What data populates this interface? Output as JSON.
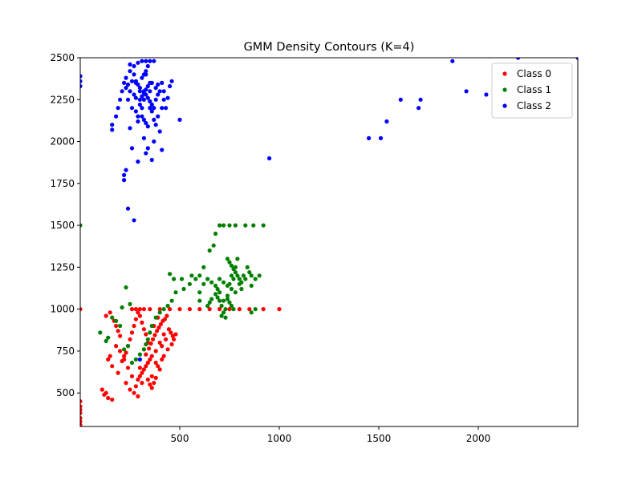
{
  "chart_data": {
    "type": "scatter",
    "title": "GMM Density Contours (K=4)",
    "xlabel": "",
    "ylabel": "",
    "xlim": [
      0,
      2500
    ],
    "ylim": [
      300,
      2500
    ],
    "xticks": [
      500,
      1000,
      1500,
      2000
    ],
    "yticks": [
      500,
      750,
      1000,
      1250,
      1500,
      1750,
      2000,
      2250,
      2500
    ],
    "grid": false,
    "legend_position": "top-right",
    "series": [
      {
        "name": "Class 0",
        "color": "#ff0000",
        "points": [
          [
            350,
            700
          ],
          [
            360,
            720
          ],
          [
            380,
            750
          ],
          [
            340,
            680
          ],
          [
            400,
            800
          ],
          [
            420,
            850
          ],
          [
            300,
            650
          ],
          [
            320,
            760
          ],
          [
            370,
            900
          ],
          [
            390,
            950
          ],
          [
            410,
            780
          ],
          [
            430,
            820
          ],
          [
            360,
            600
          ],
          [
            340,
            580
          ],
          [
            310,
            560
          ],
          [
            280,
            540
          ],
          [
            260,
            600
          ],
          [
            240,
            650
          ],
          [
            220,
            700
          ],
          [
            200,
            750
          ],
          [
            180,
            780
          ],
          [
            150,
            720
          ],
          [
            140,
            700
          ],
          [
            160,
            660
          ],
          [
            190,
            620
          ],
          [
            230,
            560
          ],
          [
            250,
            520
          ],
          [
            270,
            500
          ],
          [
            290,
            480
          ],
          [
            130,
            500
          ],
          [
            120,
            490
          ],
          [
            110,
            520
          ],
          [
            140,
            470
          ],
          [
            160,
            460
          ],
          [
            350,
            1000
          ],
          [
            400,
            1000
          ],
          [
            450,
            1000
          ],
          [
            500,
            1000
          ],
          [
            550,
            1000
          ],
          [
            600,
            1000
          ],
          [
            650,
            1000
          ],
          [
            700,
            1000
          ],
          [
            750,
            1000
          ],
          [
            800,
            1000
          ],
          [
            850,
            1000
          ],
          [
            920,
            1000
          ],
          [
            1000,
            1000
          ],
          [
            0,
            1000
          ],
          [
            0,
            450
          ],
          [
            0,
            420
          ],
          [
            0,
            400
          ],
          [
            0,
            380
          ],
          [
            0,
            350
          ],
          [
            0,
            330
          ],
          [
            0,
            310
          ],
          [
            330,
            730
          ],
          [
            345,
            765
          ],
          [
            355,
            795
          ],
          [
            365,
            820
          ],
          [
            375,
            845
          ],
          [
            385,
            870
          ],
          [
            395,
            890
          ],
          [
            405,
            910
          ],
          [
            415,
            930
          ],
          [
            425,
            940
          ],
          [
            435,
            960
          ],
          [
            445,
            880
          ],
          [
            455,
            860
          ],
          [
            465,
            840
          ],
          [
            330,
            660
          ],
          [
            320,
            640
          ],
          [
            310,
            620
          ],
          [
            300,
            600
          ],
          [
            290,
            580
          ],
          [
            380,
            680
          ],
          [
            390,
            660
          ],
          [
            400,
            640
          ],
          [
            410,
            700
          ],
          [
            420,
            720
          ],
          [
            440,
            760
          ],
          [
            460,
            790
          ],
          [
            470,
            820
          ],
          [
            480,
            850
          ],
          [
            340,
            800
          ],
          [
            330,
            850
          ],
          [
            320,
            880
          ],
          [
            310,
            920
          ],
          [
            300,
            960
          ],
          [
            290,
            980
          ],
          [
            280,
            940
          ],
          [
            270,
            900
          ],
          [
            260,
            860
          ],
          [
            250,
            820
          ],
          [
            240,
            780
          ],
          [
            230,
            740
          ],
          [
            220,
            720
          ],
          [
            210,
            690
          ],
          [
            350,
            550
          ],
          [
            360,
            530
          ],
          [
            370,
            560
          ],
          [
            380,
            590
          ],
          [
            200,
            840
          ],
          [
            190,
            870
          ],
          [
            180,
            900
          ],
          [
            170,
            930
          ],
          [
            150,
            980
          ],
          [
            130,
            960
          ],
          [
            260,
            1000
          ],
          [
            280,
            1000
          ],
          [
            300,
            1000
          ],
          [
            320,
            1000
          ]
        ]
      },
      {
        "name": "Class 1",
        "color": "#008000",
        "points": [
          [
            700,
            1100
          ],
          [
            720,
            1050
          ],
          [
            750,
            1150
          ],
          [
            730,
            1000
          ],
          [
            760,
            1200
          ],
          [
            740,
            1080
          ],
          [
            710,
            1020
          ],
          [
            690,
            1120
          ],
          [
            770,
            1180
          ],
          [
            780,
            1250
          ],
          [
            790,
            1300
          ],
          [
            800,
            1150
          ],
          [
            810,
            1120
          ],
          [
            820,
            1200
          ],
          [
            830,
            1180
          ],
          [
            840,
            1250
          ],
          [
            850,
            1220
          ],
          [
            860,
            1200
          ],
          [
            700,
            1500
          ],
          [
            720,
            1500
          ],
          [
            750,
            1500
          ],
          [
            780,
            1500
          ],
          [
            830,
            1500
          ],
          [
            870,
            1500
          ],
          [
            920,
            1500
          ],
          [
            0,
            1500
          ],
          [
            680,
            1450
          ],
          [
            670,
            1380
          ],
          [
            650,
            1350
          ],
          [
            620,
            1250
          ],
          [
            600,
            1200
          ],
          [
            580,
            1180
          ],
          [
            550,
            1150
          ],
          [
            520,
            1120
          ],
          [
            480,
            1100
          ],
          [
            460,
            1050
          ],
          [
            440,
            1020
          ],
          [
            420,
            1000
          ],
          [
            400,
            980
          ],
          [
            380,
            950
          ],
          [
            360,
            900
          ],
          [
            350,
            860
          ],
          [
            340,
            820
          ],
          [
            330,
            790
          ],
          [
            320,
            760
          ],
          [
            300,
            730
          ],
          [
            280,
            700
          ],
          [
            260,
            680
          ],
          [
            240,
            780
          ],
          [
            220,
            760
          ],
          [
            200,
            900
          ],
          [
            180,
            930
          ],
          [
            160,
            950
          ],
          [
            140,
            830
          ],
          [
            130,
            810
          ],
          [
            100,
            860
          ],
          [
            210,
            1010
          ],
          [
            230,
            1130
          ],
          [
            250,
            1030
          ],
          [
            600,
            1100
          ],
          [
            620,
            1150
          ],
          [
            640,
            1180
          ],
          [
            660,
            1160
          ],
          [
            680,
            1140
          ],
          [
            700,
            1180
          ],
          [
            720,
            1160
          ],
          [
            740,
            1140
          ],
          [
            760,
            1120
          ],
          [
            780,
            1100
          ],
          [
            740,
            1060
          ],
          [
            750,
            1040
          ],
          [
            760,
            1020
          ],
          [
            770,
            1000
          ],
          [
            720,
            980
          ],
          [
            710,
            960
          ],
          [
            730,
            950
          ],
          [
            740,
            1300
          ],
          [
            750,
            1280
          ],
          [
            760,
            1260
          ],
          [
            770,
            1240
          ],
          [
            780,
            1220
          ],
          [
            790,
            1200
          ],
          [
            800,
            1180
          ],
          [
            810,
            1160
          ],
          [
            700,
            1050
          ],
          [
            690,
            1070
          ],
          [
            680,
            1090
          ],
          [
            660,
            1060
          ],
          [
            650,
            1040
          ],
          [
            640,
            1020
          ],
          [
            880,
            1180
          ],
          [
            860,
            1140
          ],
          [
            900,
            1200
          ],
          [
            880,
            1000
          ],
          [
            860,
            980
          ],
          [
            450,
            1210
          ],
          [
            470,
            1180
          ],
          [
            510,
            1180
          ],
          [
            560,
            1200
          ],
          [
            600,
            1050
          ]
        ]
      },
      {
        "name": "Class 2",
        "color": "#0000ff",
        "points": [
          [
            300,
            2300
          ],
          [
            320,
            2250
          ],
          [
            280,
            2350
          ],
          [
            310,
            2200
          ],
          [
            330,
            2400
          ],
          [
            350,
            2300
          ],
          [
            290,
            2150
          ],
          [
            270,
            2400
          ],
          [
            340,
            2450
          ],
          [
            360,
            2350
          ],
          [
            250,
            2300
          ],
          [
            240,
            2250
          ],
          [
            260,
            2200
          ],
          [
            380,
            2250
          ],
          [
            370,
            2200
          ],
          [
            390,
            2150
          ],
          [
            400,
            2300
          ],
          [
            410,
            2350
          ],
          [
            420,
            2250
          ],
          [
            430,
            2200
          ],
          [
            310,
            2480
          ],
          [
            330,
            2480
          ],
          [
            350,
            2480
          ],
          [
            370,
            2480
          ],
          [
            290,
            2470
          ],
          [
            270,
            2450
          ],
          [
            250,
            2420
          ],
          [
            230,
            2380
          ],
          [
            220,
            2350
          ],
          [
            210,
            2300
          ],
          [
            200,
            2250
          ],
          [
            190,
            2200
          ],
          [
            180,
            2150
          ],
          [
            160,
            2100
          ],
          [
            160,
            2070
          ],
          [
            250,
            2080
          ],
          [
            260,
            1960
          ],
          [
            290,
            1880
          ],
          [
            330,
            1930
          ],
          [
            360,
            1890
          ],
          [
            410,
            1950
          ],
          [
            370,
            2000
          ],
          [
            400,
            2060
          ],
          [
            320,
            2020
          ],
          [
            340,
            1960
          ],
          [
            230,
            1830
          ],
          [
            220,
            1800
          ],
          [
            220,
            1770
          ],
          [
            240,
            1600
          ],
          [
            270,
            1530
          ],
          [
            440,
            2260
          ],
          [
            450,
            2330
          ],
          [
            420,
            2300
          ],
          [
            410,
            2200
          ],
          [
            500,
            2130
          ],
          [
            0,
            2390
          ],
          [
            0,
            2360
          ],
          [
            0,
            2330
          ],
          [
            950,
            1900
          ],
          [
            1450,
            2020
          ],
          [
            1510,
            2020
          ],
          [
            1540,
            2120
          ],
          [
            1610,
            2250
          ],
          [
            1700,
            2200
          ],
          [
            1710,
            2250
          ],
          [
            1870,
            2480
          ],
          [
            1940,
            2300
          ],
          [
            2040,
            2280
          ],
          [
            2200,
            2500
          ],
          [
            2500,
            2500
          ],
          [
            300,
            700
          ],
          [
            320,
            2300
          ],
          [
            330,
            2280
          ],
          [
            340,
            2260
          ],
          [
            350,
            2240
          ],
          [
            360,
            2220
          ],
          [
            300,
            2320
          ],
          [
            290,
            2340
          ],
          [
            280,
            2360
          ],
          [
            310,
            2380
          ],
          [
            320,
            2400
          ],
          [
            330,
            2420
          ],
          [
            300,
            2250
          ],
          [
            310,
            2270
          ],
          [
            320,
            2290
          ],
          [
            330,
            2310
          ],
          [
            340,
            2330
          ],
          [
            350,
            2350
          ],
          [
            310,
            2150
          ],
          [
            320,
            2130
          ],
          [
            330,
            2110
          ],
          [
            340,
            2090
          ],
          [
            270,
            2280
          ],
          [
            280,
            2260
          ],
          [
            300,
            2220
          ],
          [
            350,
            2200
          ],
          [
            360,
            2180
          ],
          [
            380,
            2320
          ],
          [
            390,
            2340
          ],
          [
            230,
            2320
          ],
          [
            240,
            2340
          ],
          [
            260,
            2360
          ],
          [
            280,
            2180
          ],
          [
            290,
            2120
          ],
          [
            370,
            2130
          ],
          [
            380,
            2100
          ],
          [
            390,
            2280
          ],
          [
            460,
            2360
          ],
          [
            250,
            2460
          ]
        ]
      }
    ]
  }
}
